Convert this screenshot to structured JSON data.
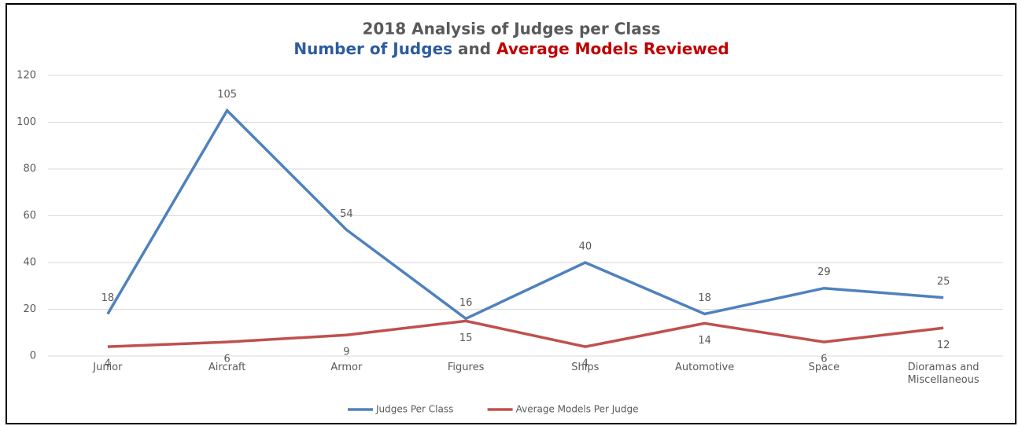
{
  "chart_data": {
    "type": "line",
    "title": "2018 Analysis of Judges per Class",
    "subtitle_parts": [
      {
        "text": "Number of Judges",
        "color": "#2e5c9e"
      },
      {
        "text": "and",
        "color": "#595959"
      },
      {
        "text": "Average Models Reviewed",
        "color": "#c00000"
      }
    ],
    "categories": [
      "Junior",
      "Aircraft",
      "Armor",
      "Figures",
      "Ships",
      "Automotive",
      "Space",
      "Dioramas and Miscellaneous"
    ],
    "series": [
      {
        "name": "Judges Per Class",
        "color": "#4f81bd",
        "values": [
          18,
          105,
          54,
          16,
          40,
          18,
          29,
          25
        ],
        "label_position": "above"
      },
      {
        "name": "Average Models Per Judge",
        "color": "#c0504d",
        "values": [
          4,
          6,
          9,
          15,
          4,
          14,
          6,
          12
        ],
        "label_position": "below"
      }
    ],
    "ylim": [
      0,
      120
    ],
    "yticks": [
      0,
      20,
      40,
      60,
      80,
      100,
      120
    ],
    "grid": true,
    "legend": "bottom"
  }
}
